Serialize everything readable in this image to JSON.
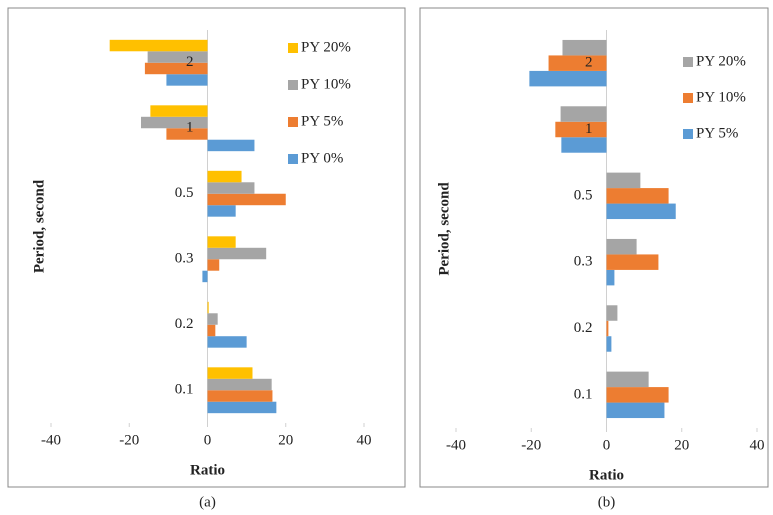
{
  "chart_data": [
    {
      "type": "bar",
      "orientation": "horizontal",
      "categories": [
        "0.1",
        "0.2",
        "0.3",
        "0.5",
        "1",
        "2"
      ],
      "series": [
        {
          "name": "PY 0%",
          "color": "#5b9bd5",
          "values": [
            17.6,
            10,
            -1.3,
            7.2,
            12,
            -10.5
          ]
        },
        {
          "name": "PY 5%",
          "color": "#ed7d31",
          "values": [
            16.6,
            2,
            3,
            20,
            -10.5,
            -16
          ]
        },
        {
          "name": "PY 10%",
          "color": "#a5a5a5",
          "values": [
            16.4,
            2.6,
            15,
            12,
            -17,
            -15.3
          ]
        },
        {
          "name": "PY 20%",
          "color": "#ffc000",
          "values": [
            11.5,
            0.3,
            7.2,
            8.7,
            -14.6,
            -25
          ]
        }
      ],
      "xlim": [
        -40,
        40
      ],
      "xticks": [
        -40,
        -20,
        0,
        20,
        40
      ],
      "xlabel": "Ratio",
      "ylabel": "Period, second",
      "caption": "(a)",
      "legend": "top-right",
      "legend_reversed": true
    },
    {
      "type": "bar",
      "orientation": "horizontal",
      "categories": [
        "0.1",
        "0.2",
        "0.3",
        "0.5",
        "1",
        "2"
      ],
      "series": [
        {
          "name": "PY 5%",
          "color": "#5b9bd5",
          "values": [
            15.4,
            1.3,
            2.1,
            18.4,
            -12,
            -20.5
          ]
        },
        {
          "name": "PY 10%",
          "color": "#ed7d31",
          "values": [
            16.5,
            0.5,
            13.8,
            16.5,
            -13.6,
            -15.4
          ]
        },
        {
          "name": "PY 20%",
          "color": "#a5a5a5",
          "values": [
            11.2,
            2.9,
            8,
            9,
            -12.2,
            -11.7
          ]
        }
      ],
      "xlim": [
        -40,
        40
      ],
      "xticks": [
        -40,
        -20,
        0,
        20,
        40
      ],
      "xlabel": "Ratio",
      "ylabel": "Period, second",
      "caption": "(b)",
      "legend": "top-right",
      "legend_reversed": true
    }
  ]
}
